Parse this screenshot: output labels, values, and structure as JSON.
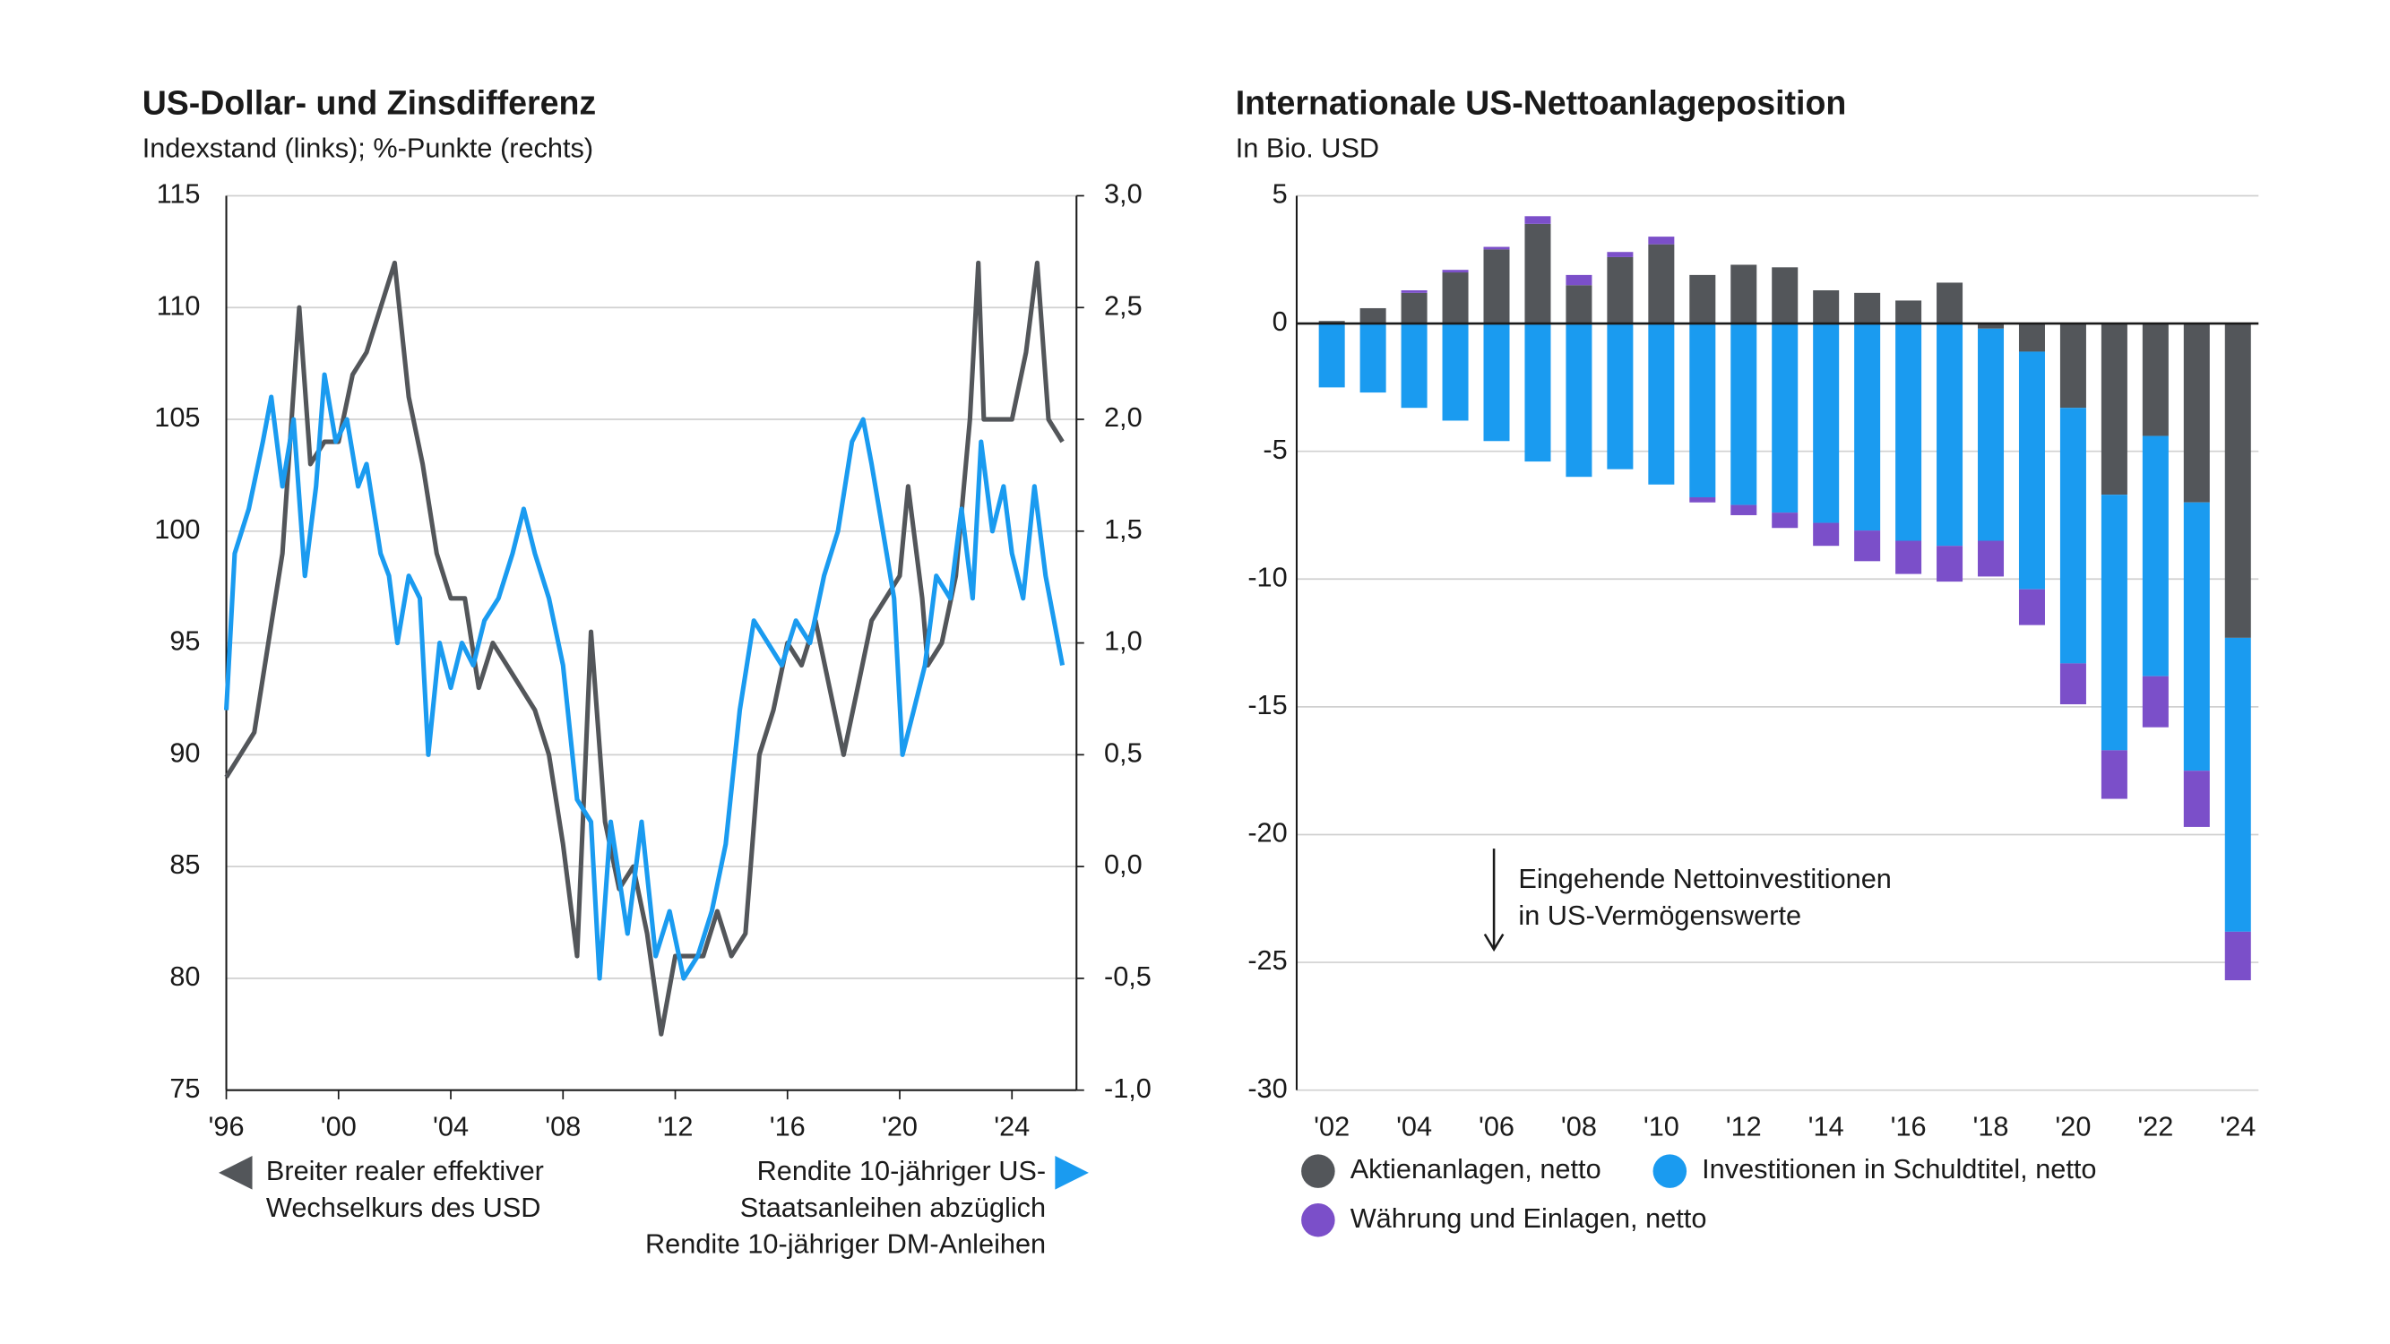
{
  "chart_data": [
    {
      "type": "line",
      "title": "US-Dollar- und Zinsdifferenz",
      "subtitle": "Indexstand (links); %-Punkte (rechts)",
      "xlim": [
        1996,
        2026.3
      ],
      "xticks": [
        {
          "value": 1996,
          "label": "'96"
        },
        {
          "value": 2000,
          "label": "'00"
        },
        {
          "value": 2004,
          "label": "'04"
        },
        {
          "value": 2008,
          "label": "'08"
        },
        {
          "value": 2012,
          "label": "'12"
        },
        {
          "value": 2016,
          "label": "'16"
        },
        {
          "value": 2020,
          "label": "'20"
        },
        {
          "value": 2024,
          "label": "'24"
        }
      ],
      "ylim": [
        75,
        115
      ],
      "yticks": [
        75,
        80,
        85,
        90,
        95,
        100,
        105,
        110,
        115
      ],
      "y2lim": [
        -1,
        3
      ],
      "y2ticks": [
        {
          "value": -1,
          "label": "-1,0"
        },
        {
          "value": -0.5,
          "label": "-0,5"
        },
        {
          "value": 0,
          "label": "0,0"
        },
        {
          "value": 0.5,
          "label": "0,5"
        },
        {
          "value": 1,
          "label": "1,0"
        },
        {
          "value": 1.5,
          "label": "1,5"
        },
        {
          "value": 2,
          "label": "2,0"
        },
        {
          "value": 2.5,
          "label": "2,5"
        },
        {
          "value": 3,
          "label": "3,0"
        }
      ],
      "grid": true,
      "series": [
        {
          "name": "Breiter realer effektiver\nWechselkurs des USD",
          "color": "#53565a",
          "x": [
            1996.0,
            1996.5,
            1997.0,
            1997.5,
            1998.0,
            1998.6,
            1999.0,
            1999.5,
            2000.0,
            2000.5,
            2001.0,
            2001.5,
            2002.0,
            2002.5,
            2003.0,
            2003.5,
            2004.0,
            2004.5,
            2005.0,
            2005.5,
            2006.0,
            2006.5,
            2007.0,
            2007.5,
            2008.0,
            2008.5,
            2009.0,
            2009.5,
            2010.0,
            2010.5,
            2011.0,
            2011.5,
            2012.0,
            2012.5,
            2013.0,
            2013.5,
            2014.0,
            2014.5,
            2015.0,
            2015.5,
            2016.0,
            2016.5,
            2017.0,
            2017.5,
            2018.0,
            2018.5,
            2019.0,
            2019.5,
            2020.0,
            2020.3,
            2020.8,
            2021.0,
            2021.5,
            2022.0,
            2022.5,
            2022.8,
            2023.0,
            2023.5,
            2024.0,
            2024.5,
            2024.9,
            2025.3,
            2025.8
          ],
          "values": [
            89,
            90,
            91,
            95,
            99,
            110,
            103,
            104,
            104,
            107,
            108,
            110,
            112,
            106,
            103,
            99,
            97,
            97,
            93,
            95,
            94,
            93,
            92,
            90,
            86,
            81,
            95.5,
            87,
            84,
            85,
            82,
            77.5,
            81,
            81,
            81,
            83,
            81,
            82,
            90,
            92,
            95,
            94,
            96,
            93,
            90,
            93,
            96,
            97,
            98,
            102,
            97,
            94,
            95,
            98,
            105,
            112,
            105,
            105,
            105,
            108,
            112,
            105,
            104
          ]
        },
        {
          "name": "Rendite 10-jähriger US-\nStaatsanleihen abzüglich\nRendite 10-jähriger DM-Anleihen",
          "color": "#1a9bf0",
          "axis": "y2",
          "x": [
            1996.0,
            1996.3,
            1996.8,
            1997.3,
            1997.6,
            1998.0,
            1998.4,
            1998.8,
            1999.2,
            1999.5,
            1999.9,
            2000.3,
            2000.7,
            2001.0,
            2001.5,
            2001.8,
            2002.1,
            2002.5,
            2002.9,
            2003.2,
            2003.6,
            2004.0,
            2004.4,
            2004.8,
            2005.2,
            2005.7,
            2006.2,
            2006.6,
            2007.0,
            2007.5,
            2008.0,
            2008.5,
            2009.0,
            2009.3,
            2009.7,
            2010.3,
            2010.8,
            2011.3,
            2011.8,
            2012.3,
            2012.8,
            2013.3,
            2013.8,
            2014.3,
            2014.8,
            2015.3,
            2015.8,
            2016.3,
            2016.8,
            2017.3,
            2017.8,
            2018.3,
            2018.7,
            2019.0,
            2019.4,
            2019.8,
            2020.1,
            2020.5,
            2020.9,
            2021.3,
            2021.8,
            2022.2,
            2022.6,
            2022.9,
            2023.3,
            2023.7,
            2024.0,
            2024.4,
            2024.8,
            2025.2,
            2025.5,
            2025.8
          ],
          "values": [
            0.7,
            1.4,
            1.6,
            1.9,
            2.1,
            1.7,
            2.0,
            1.3,
            1.7,
            2.2,
            1.9,
            2.0,
            1.7,
            1.8,
            1.4,
            1.3,
            1.0,
            1.3,
            1.2,
            0.5,
            1.0,
            0.8,
            1.0,
            0.9,
            1.1,
            1.2,
            1.4,
            1.6,
            1.4,
            1.2,
            0.9,
            0.3,
            0.2,
            -0.5,
            0.2,
            -0.3,
            0.2,
            -0.4,
            -0.2,
            -0.5,
            -0.4,
            -0.2,
            0.1,
            0.7,
            1.1,
            1.0,
            0.9,
            1.1,
            1.0,
            1.3,
            1.5,
            1.9,
            2.0,
            1.8,
            1.5,
            1.2,
            0.5,
            0.7,
            0.9,
            1.3,
            1.2,
            1.6,
            1.2,
            1.9,
            1.5,
            1.7,
            1.4,
            1.2,
            1.7,
            1.3,
            1.1,
            0.9
          ]
        }
      ]
    },
    {
      "type": "bar",
      "stacked": true,
      "title": "Internationale US-Nettoanlageposition",
      "subtitle": "In Bio. USD",
      "categories": [
        "'02",
        null,
        "'04",
        null,
        "'06",
        null,
        "'08",
        null,
        "'10",
        null,
        "'12",
        null,
        "'14",
        null,
        "'16",
        null,
        "'18",
        null,
        "'20",
        null,
        "'22",
        null,
        "'24"
      ],
      "ylim": [
        -30,
        5
      ],
      "yticks": [
        -30,
        -25,
        -20,
        -15,
        -10,
        -5,
        0,
        5
      ],
      "grid": true,
      "annotation": "Eingehende Nettoinvestitionen\nin US-Vermögenswerte",
      "series": [
        {
          "name": "Aktienanlagen, netto",
          "color": "#53565a",
          "values": [
            0.1,
            0.6,
            1.2,
            2.0,
            2.9,
            3.9,
            1.5,
            2.6,
            3.1,
            1.9,
            2.3,
            2.2,
            1.3,
            1.2,
            0.9,
            1.6,
            -0.2,
            -1.1,
            -3.3,
            -6.7,
            -4.4,
            -7.0,
            -12.3
          ]
        },
        {
          "name": "Investitionen in Schuldtitel, netto",
          "color": "#1a9bf0",
          "values": [
            -2.5,
            -2.7,
            -3.3,
            -3.8,
            -4.6,
            -5.4,
            -6.0,
            -5.7,
            -6.3,
            -6.8,
            -7.1,
            -7.4,
            -7.8,
            -8.1,
            -8.5,
            -8.7,
            -8.3,
            -9.3,
            -10.0,
            -10.0,
            -9.4,
            -10.5,
            -11.5
          ]
        },
        {
          "name": "Währung und Einlagen, netto",
          "color": "#7b4fc9",
          "values": [
            0,
            0,
            0.1,
            0.1,
            0.1,
            0.3,
            0.4,
            0.2,
            0.3,
            -0.2,
            -0.4,
            -0.6,
            -0.9,
            -1.2,
            -1.3,
            -1.4,
            -1.4,
            -1.4,
            -1.6,
            -1.9,
            -2.0,
            -2.2,
            -1.9
          ]
        }
      ]
    }
  ]
}
